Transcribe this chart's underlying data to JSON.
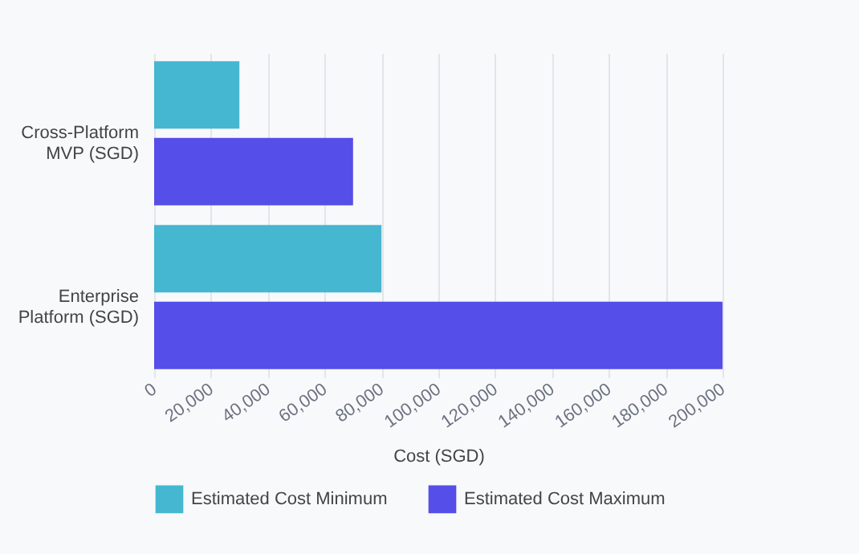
{
  "chart_data": {
    "type": "bar",
    "orientation": "horizontal",
    "xlabel": "Cost (SGD)",
    "categories": [
      "Cross-Platform MVP (SGD)",
      "Enterprise Platform (SGD)"
    ],
    "series": [
      {
        "name": "Estimated Cost Minimum",
        "color": "#45b7d1",
        "values": [
          30000,
          80000
        ]
      },
      {
        "name": "Estimated Cost Maximum",
        "color": "#554ee8",
        "values": [
          70000,
          200000
        ]
      }
    ],
    "xlim": [
      0,
      200000
    ],
    "xticks": [
      {
        "value": 0,
        "label": "0"
      },
      {
        "value": 20000,
        "label": "20,000"
      },
      {
        "value": 40000,
        "label": "40,000"
      },
      {
        "value": 60000,
        "label": "60,000"
      },
      {
        "value": 80000,
        "label": "80,000"
      },
      {
        "value": 100000,
        "label": "100,000"
      },
      {
        "value": 120000,
        "label": "120,000"
      },
      {
        "value": 140000,
        "label": "140,000"
      },
      {
        "value": 160000,
        "label": "160,000"
      },
      {
        "value": 180000,
        "label": "180,000"
      },
      {
        "value": 200000,
        "label": "200,000"
      }
    ],
    "grid": "x",
    "legend": "bottom"
  }
}
